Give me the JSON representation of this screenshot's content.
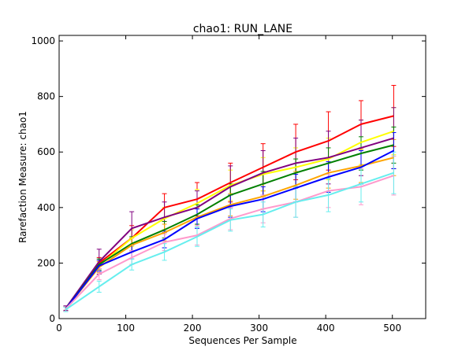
{
  "chart_data": {
    "type": "line",
    "title": "chao1: RUN_LANE",
    "xlabel": "Sequences Per Sample",
    "ylabel": "Rarefaction Measure: chao1",
    "xlim": [
      0,
      550
    ],
    "ylim": [
      0,
      1020
    ],
    "xticks": [
      0,
      100,
      200,
      300,
      400,
      500
    ],
    "yticks": [
      0,
      200,
      400,
      600,
      800,
      1000
    ],
    "grid": false,
    "legend": "none",
    "x": [
      10,
      60,
      109,
      158,
      207,
      257,
      306,
      355,
      404,
      453,
      502
    ],
    "series": [
      {
        "color": "#ff0000",
        "values": [
          35,
          200,
          290,
          400,
          430,
          490,
          545,
          600,
          640,
          700,
          730
        ],
        "errors": [
          8,
          20,
          45,
          50,
          60,
          70,
          85,
          100,
          105,
          85,
          110
        ]
      },
      {
        "color": "#ffff00",
        "values": [
          35,
          190,
          290,
          360,
          415,
          480,
          520,
          545,
          575,
          635,
          675
        ],
        "errors": [
          8,
          20,
          30,
          40,
          50,
          55,
          60,
          70,
          75,
          80,
          85
        ]
      },
      {
        "color": "#800080",
        "values": [
          38,
          205,
          325,
          365,
          400,
          475,
          525,
          560,
          580,
          615,
          650
        ],
        "errors": [
          8,
          45,
          60,
          55,
          60,
          75,
          80,
          90,
          95,
          100,
          110
        ]
      },
      {
        "color": "#008000",
        "values": [
          35,
          195,
          270,
          320,
          375,
          445,
          485,
          525,
          560,
          595,
          625
        ],
        "errors": [
          8,
          20,
          25,
          30,
          35,
          40,
          45,
          50,
          55,
          60,
          65
        ]
      },
      {
        "color": "#ffa500",
        "values": [
          35,
          185,
          265,
          310,
          365,
          410,
          440,
          480,
          525,
          550,
          580
        ],
        "errors": [
          8,
          20,
          25,
          30,
          35,
          40,
          45,
          50,
          55,
          60,
          65
        ]
      },
      {
        "color": "#0000ff",
        "values": [
          35,
          190,
          240,
          285,
          360,
          405,
          430,
          470,
          510,
          545,
          605
        ],
        "errors": [
          8,
          20,
          25,
          30,
          35,
          40,
          45,
          50,
          55,
          60,
          65
        ]
      },
      {
        "color": "#ff99cc",
        "values": [
          35,
          160,
          220,
          275,
          300,
          360,
          395,
          420,
          460,
          475,
          515
        ],
        "errors": [
          8,
          20,
          25,
          30,
          35,
          40,
          50,
          55,
          60,
          65,
          70
        ]
      },
      {
        "color": "#66eeee",
        "values": [
          33,
          115,
          195,
          240,
          295,
          355,
          375,
          420,
          445,
          485,
          525
        ],
        "errors": [
          8,
          20,
          20,
          30,
          35,
          40,
          45,
          55,
          60,
          65,
          75
        ]
      }
    ]
  }
}
